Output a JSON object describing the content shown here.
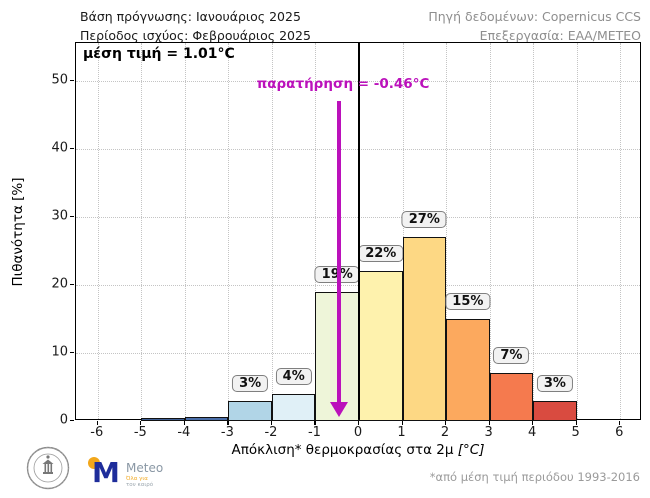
{
  "header": {
    "left_line1": "Βάση πρόγνωσης: Ιανουάριος 2025",
    "left_line2": "Περίοδος ισχύος: Φεβρουάριος 2025",
    "right_line1": "Πηγή δεδομένων: Copernicus CCS",
    "right_line2": "Επεξεργασία: ΕΑΑ/ΜΕΤΕΟ"
  },
  "chart_data": {
    "type": "bar",
    "title": "",
    "xlabel_main": "Απόκλιση* θερμοκρασίας στα 2μ ",
    "xlabel_unit": "[°C]",
    "ylabel": "Πιθανότητα [%]",
    "xlim": [
      -6.5,
      6.5
    ],
    "ylim": [
      0,
      55.6
    ],
    "x_ticks": [
      -6,
      -5,
      -4,
      -3,
      -2,
      -1,
      0,
      1,
      2,
      3,
      4,
      5,
      6
    ],
    "y_ticks": [
      0,
      10,
      20,
      30,
      40,
      50
    ],
    "grid": true,
    "bars": [
      {
        "from": -5,
        "to": -4,
        "value": 0.4,
        "label": "",
        "color": "#3e5f94"
      },
      {
        "from": -4,
        "to": -3,
        "value": 0.6,
        "label": "",
        "color": "#4a6ea9"
      },
      {
        "from": -3,
        "to": -2,
        "value": 3,
        "label": "3%",
        "color": "#b1d5e7"
      },
      {
        "from": -2,
        "to": -1,
        "value": 4,
        "label": "4%",
        "color": "#e0f0f7"
      },
      {
        "from": -1,
        "to": 0,
        "value": 19,
        "label": "19%",
        "color": "#eef5d9"
      },
      {
        "from": 0,
        "to": 1,
        "value": 22,
        "label": "22%",
        "color": "#fef2ad"
      },
      {
        "from": 1,
        "to": 2,
        "value": 27,
        "label": "27%",
        "color": "#fdd884"
      },
      {
        "from": 2,
        "to": 3,
        "value": 15,
        "label": "15%",
        "color": "#fca95e"
      },
      {
        "from": 3,
        "to": 4,
        "value": 7,
        "label": "7%",
        "color": "#f57a4e"
      },
      {
        "from": 4,
        "to": 5,
        "value": 3,
        "label": "3%",
        "color": "#d94b40"
      }
    ],
    "mean_annotation": "μέση τιμή = 1.01°C",
    "observation_annotation": "παρατήρηση = -0.46°C",
    "observation_x": -0.46,
    "zero_line_x": 0,
    "annotation_color": "#bb11bb"
  },
  "footer": {
    "footnote": "*από μέση τιμή περιόδου 1993-2016",
    "meteo_logo": {
      "name": "Meteo",
      "m_letter": "M",
      "tagline_line1": "Όλα για",
      "tagline_line2": "τον καιρό"
    }
  }
}
